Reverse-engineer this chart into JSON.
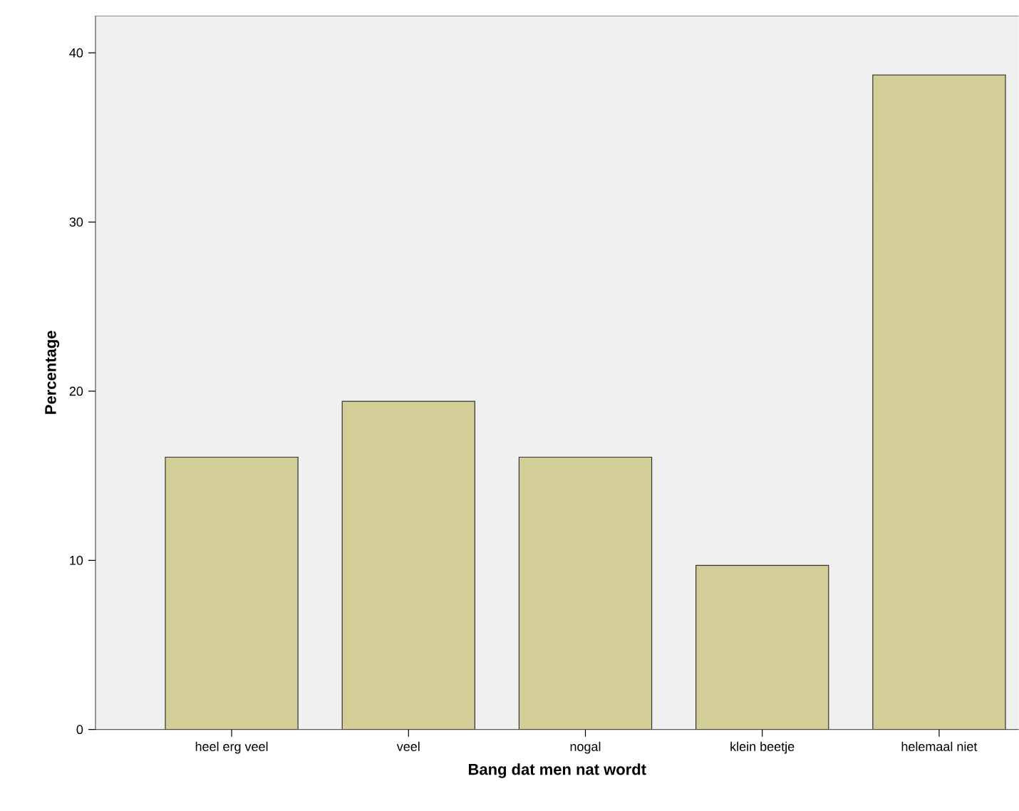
{
  "chart_data": {
    "type": "bar",
    "xlabel": "Bang dat men nat wordt",
    "ylabel": "Percentage",
    "categories": [
      "heel erg veel",
      "veel",
      "nogal",
      "klein beetje",
      "helemaal niet"
    ],
    "values": [
      16.1,
      19.4,
      16.1,
      9.7,
      38.7
    ],
    "color": "#d3ce97",
    "ylim": [
      0,
      42.2
    ],
    "yticks": [
      0,
      10,
      20,
      30,
      40
    ],
    "grid": false
  }
}
